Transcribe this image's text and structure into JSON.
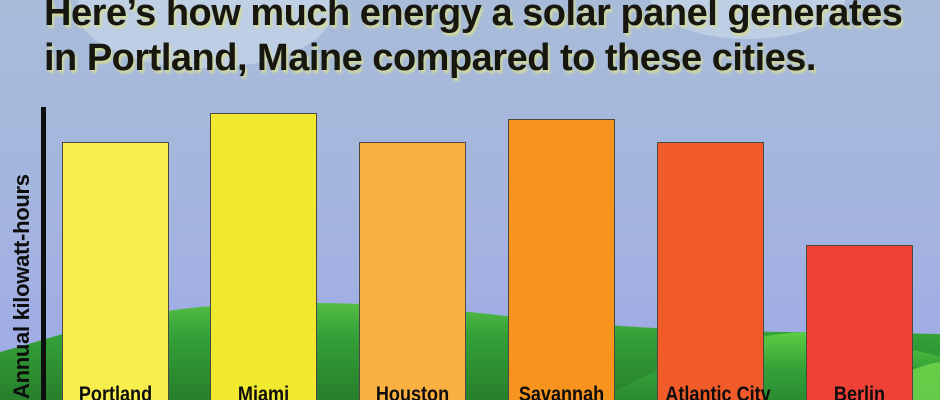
{
  "title": {
    "line1": "Here’s how much energy a solar panel generates",
    "line2": "in Portland, Maine compared to these cities."
  },
  "chart_data": {
    "type": "bar",
    "title": "Here’s how much energy a solar panel generates in Portland, Maine compared to these cities.",
    "xlabel": "",
    "ylabel": "Annual kilowatt-hours",
    "categories": [
      "Portland",
      "Miami",
      "Houston",
      "Savannah",
      "Atlantic City",
      "Berlin"
    ],
    "values_relative_to_max": [
      0.9,
      1.0,
      0.9,
      0.98,
      0.9,
      0.54
    ],
    "numeric_axis_labels_shown": false,
    "value_labels_shown": false,
    "grid": false,
    "legend": "none",
    "bar_colors": [
      "#F8EF4E",
      "#F0E92F",
      "#FBB042",
      "#F7941E",
      "#F15A29",
      "#EF4136"
    ],
    "bar_border_color": "#4A4A40"
  },
  "style_colors": {
    "sky_top": "#A8BCD9",
    "sky_bottom": "#9EA8E9",
    "cloud": "#C4D3E6",
    "hill_green_dark": "#2B8C30",
    "hill_green_light": "#55BE45",
    "hill_corner_green": "#6ED04A",
    "axis": "#0D0D0D",
    "title_text": "#17170F",
    "title_glow": "#D4DB98"
  }
}
